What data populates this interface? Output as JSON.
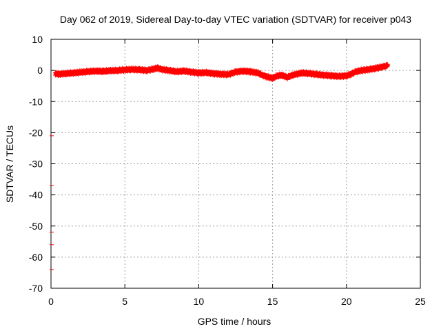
{
  "chart_data": {
    "type": "scatter",
    "title": "Day 062 of 2019, Sidereal Day-to-day VTEC variation (SDTVAR) for receiver p043",
    "xlabel": "GPS time / hours",
    "ylabel": "SDTVAR / TECUs",
    "xlim": [
      0,
      25
    ],
    "ylim": [
      -70,
      10
    ],
    "x_ticks": [
      0,
      5,
      10,
      15,
      20,
      25
    ],
    "x_tick_labels": [
      "0",
      "5",
      "10",
      "15",
      "20",
      "25"
    ],
    "y_ticks": [
      10,
      0,
      -10,
      -20,
      -30,
      -40,
      -50,
      -60,
      -70
    ],
    "y_tick_labels": [
      "10",
      "0",
      "-10",
      "-20",
      "-30",
      "-40",
      "-50",
      "-60",
      "-70"
    ],
    "grid": true,
    "marker": "plus",
    "series": [
      {
        "name": "SDTVAR p043",
        "color": "#ff0000",
        "x": [
          0.3,
          0.5,
          1.0,
          1.5,
          2.0,
          2.5,
          3.0,
          3.5,
          4.0,
          4.5,
          5.0,
          5.5,
          6.0,
          6.5,
          7.0,
          7.2,
          7.5,
          8.0,
          8.5,
          9.0,
          9.5,
          10.0,
          10.5,
          11.0,
          11.5,
          12.0,
          12.5,
          13.0,
          13.5,
          14.0,
          14.3,
          14.6,
          15.0,
          15.3,
          15.6,
          16.0,
          16.3,
          16.6,
          17.0,
          17.5,
          18.0,
          18.5,
          19.0,
          19.5,
          20.0,
          20.3,
          20.6,
          21.0,
          21.5,
          22.0,
          22.5,
          22.8
        ],
        "y": [
          -1.0,
          -1.2,
          -1.0,
          -0.8,
          -0.6,
          -0.4,
          -0.2,
          -0.3,
          -0.1,
          0.0,
          0.2,
          0.3,
          0.2,
          0.0,
          0.5,
          0.8,
          0.3,
          0.0,
          -0.4,
          -0.2,
          -0.5,
          -0.8,
          -0.7,
          -1.0,
          -1.2,
          -1.3,
          -0.5,
          -0.2,
          -0.4,
          -0.8,
          -1.5,
          -2.0,
          -2.5,
          -1.8,
          -1.5,
          -2.2,
          -1.6,
          -1.2,
          -0.8,
          -1.0,
          -1.3,
          -1.5,
          -1.7,
          -1.9,
          -1.7,
          -1.2,
          -0.5,
          0.0,
          0.3,
          0.7,
          1.2,
          1.6
        ]
      },
      {
        "name": "SDTVAR p043 (outliers)",
        "color": "#ff0000",
        "x": [
          0.05,
          0.05,
          0.05,
          0.05,
          0.05
        ],
        "y": [
          -21,
          -37,
          -52,
          -56,
          -64
        ]
      }
    ]
  }
}
